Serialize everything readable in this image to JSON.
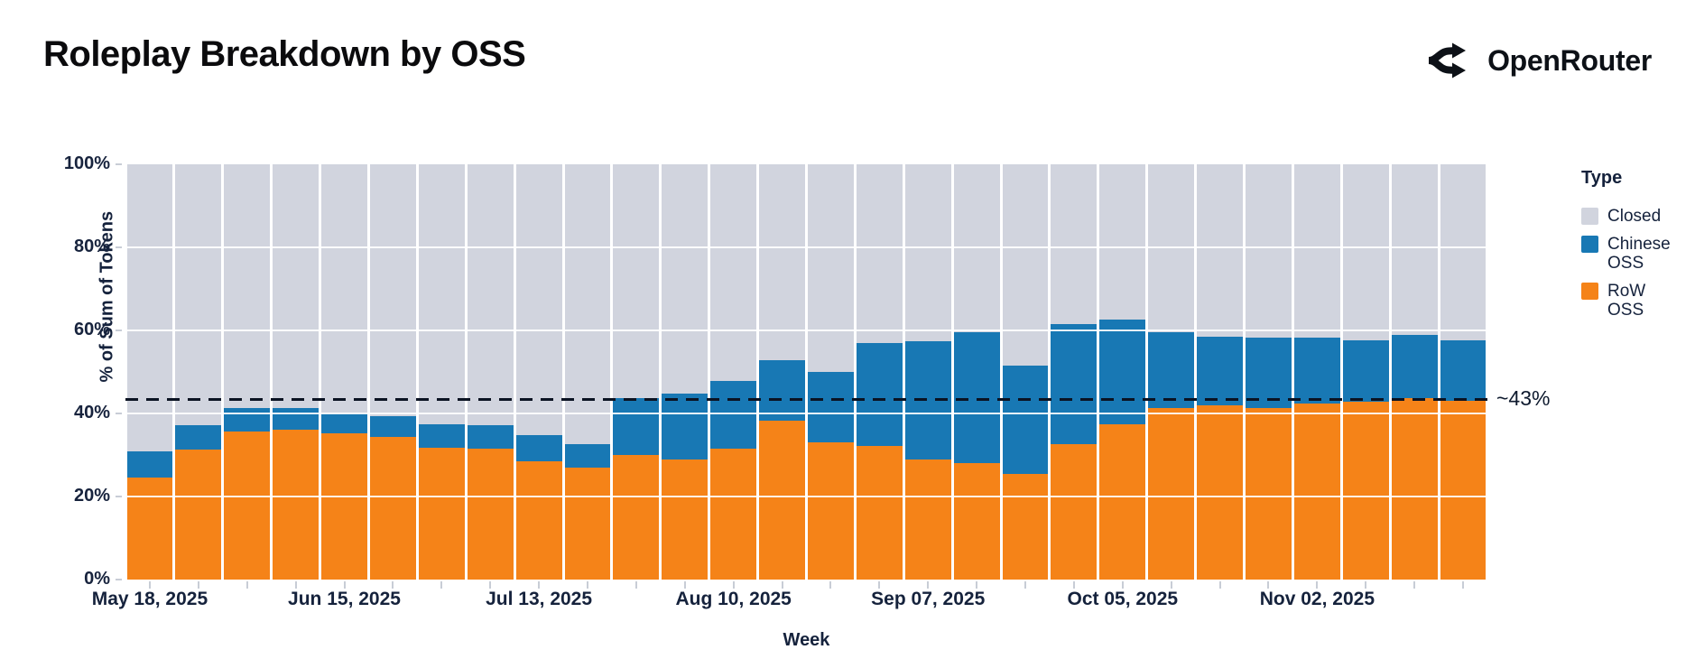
{
  "header": {
    "title": "Roleplay Breakdown by OSS",
    "brand": "OpenRouter"
  },
  "annotation_label": "~43%",
  "legend": {
    "title": "Type",
    "items": [
      {
        "label": "Closed",
        "color": "#d1d4de"
      },
      {
        "label": "Chinese OSS",
        "color": "#1878b4"
      },
      {
        "label": "RoW OSS",
        "color": "#f58318"
      }
    ]
  },
  "chart_data": {
    "type": "bar",
    "stacked": true,
    "normalized": "percent_of_total",
    "title": "Roleplay Breakdown by OSS",
    "xlabel": "Week",
    "ylabel": "% of Sum of Tokens",
    "ylim": [
      0,
      100
    ],
    "grid": "horizontal_white_lines_every_20pct",
    "legend_position": "right",
    "y_ticks": [
      "0%",
      "20%",
      "40%",
      "60%",
      "80%",
      "100%"
    ],
    "x_tick_labels": [
      "May 18, 2025",
      "Jun 15, 2025",
      "Jul 13, 2025",
      "Aug 10, 2025",
      "Sep 07, 2025",
      "Oct 05, 2025",
      "Nov 02, 2025"
    ],
    "x_tick_label_every_n": 4,
    "weeks": [
      "May 18, 2025",
      "May 25, 2025",
      "Jun 01, 2025",
      "Jun 08, 2025",
      "Jun 15, 2025",
      "Jun 22, 2025",
      "Jun 29, 2025",
      "Jul 06, 2025",
      "Jul 13, 2025",
      "Jul 20, 2025",
      "Jul 27, 2025",
      "Aug 03, 2025",
      "Aug 10, 2025",
      "Aug 17, 2025",
      "Aug 24, 2025",
      "Aug 31, 2025",
      "Sep 07, 2025",
      "Sep 14, 2025",
      "Sep 21, 2025",
      "Sep 28, 2025",
      "Oct 05, 2025",
      "Oct 12, 2025",
      "Oct 19, 2025",
      "Oct 26, 2025",
      "Nov 02, 2025",
      "Nov 09, 2025",
      "Nov 16, 2025",
      "Nov 23, 2025"
    ],
    "series": [
      {
        "name": "RoW OSS",
        "color": "#f58318",
        "values": [
          24.5,
          31.2,
          35.7,
          36.0,
          35.3,
          34.3,
          31.7,
          31.5,
          28.4,
          27.0,
          30.1,
          29.0,
          31.5,
          38.3,
          33.0,
          32.1,
          28.9,
          28.0,
          25.4,
          32.6,
          37.3,
          41.3,
          41.9,
          41.4,
          42.4,
          42.9,
          43.8,
          43.0
        ]
      },
      {
        "name": "Chinese OSS",
        "color": "#1878b4",
        "values": [
          6.4,
          6.0,
          5.5,
          5.3,
          4.8,
          5.0,
          5.8,
          5.6,
          6.4,
          5.6,
          13.7,
          15.7,
          16.3,
          14.6,
          16.9,
          24.8,
          28.5,
          31.5,
          26.2,
          28.9,
          25.4,
          18.3,
          16.6,
          16.8,
          15.8,
          14.8,
          15.2,
          14.6
        ]
      },
      {
        "name": "Closed",
        "color": "#d1d4de",
        "values": [
          69.1,
          62.8,
          58.8,
          58.7,
          59.9,
          60.7,
          62.5,
          62.9,
          65.2,
          67.4,
          56.2,
          55.3,
          52.2,
          47.1,
          50.1,
          43.1,
          42.6,
          40.5,
          48.4,
          38.5,
          37.3,
          40.4,
          41.5,
          41.8,
          41.8,
          42.3,
          41.0,
          42.4
        ]
      }
    ],
    "annotation": {
      "label": "~43%",
      "value": 43.4,
      "style": "black_dashed_line"
    }
  }
}
